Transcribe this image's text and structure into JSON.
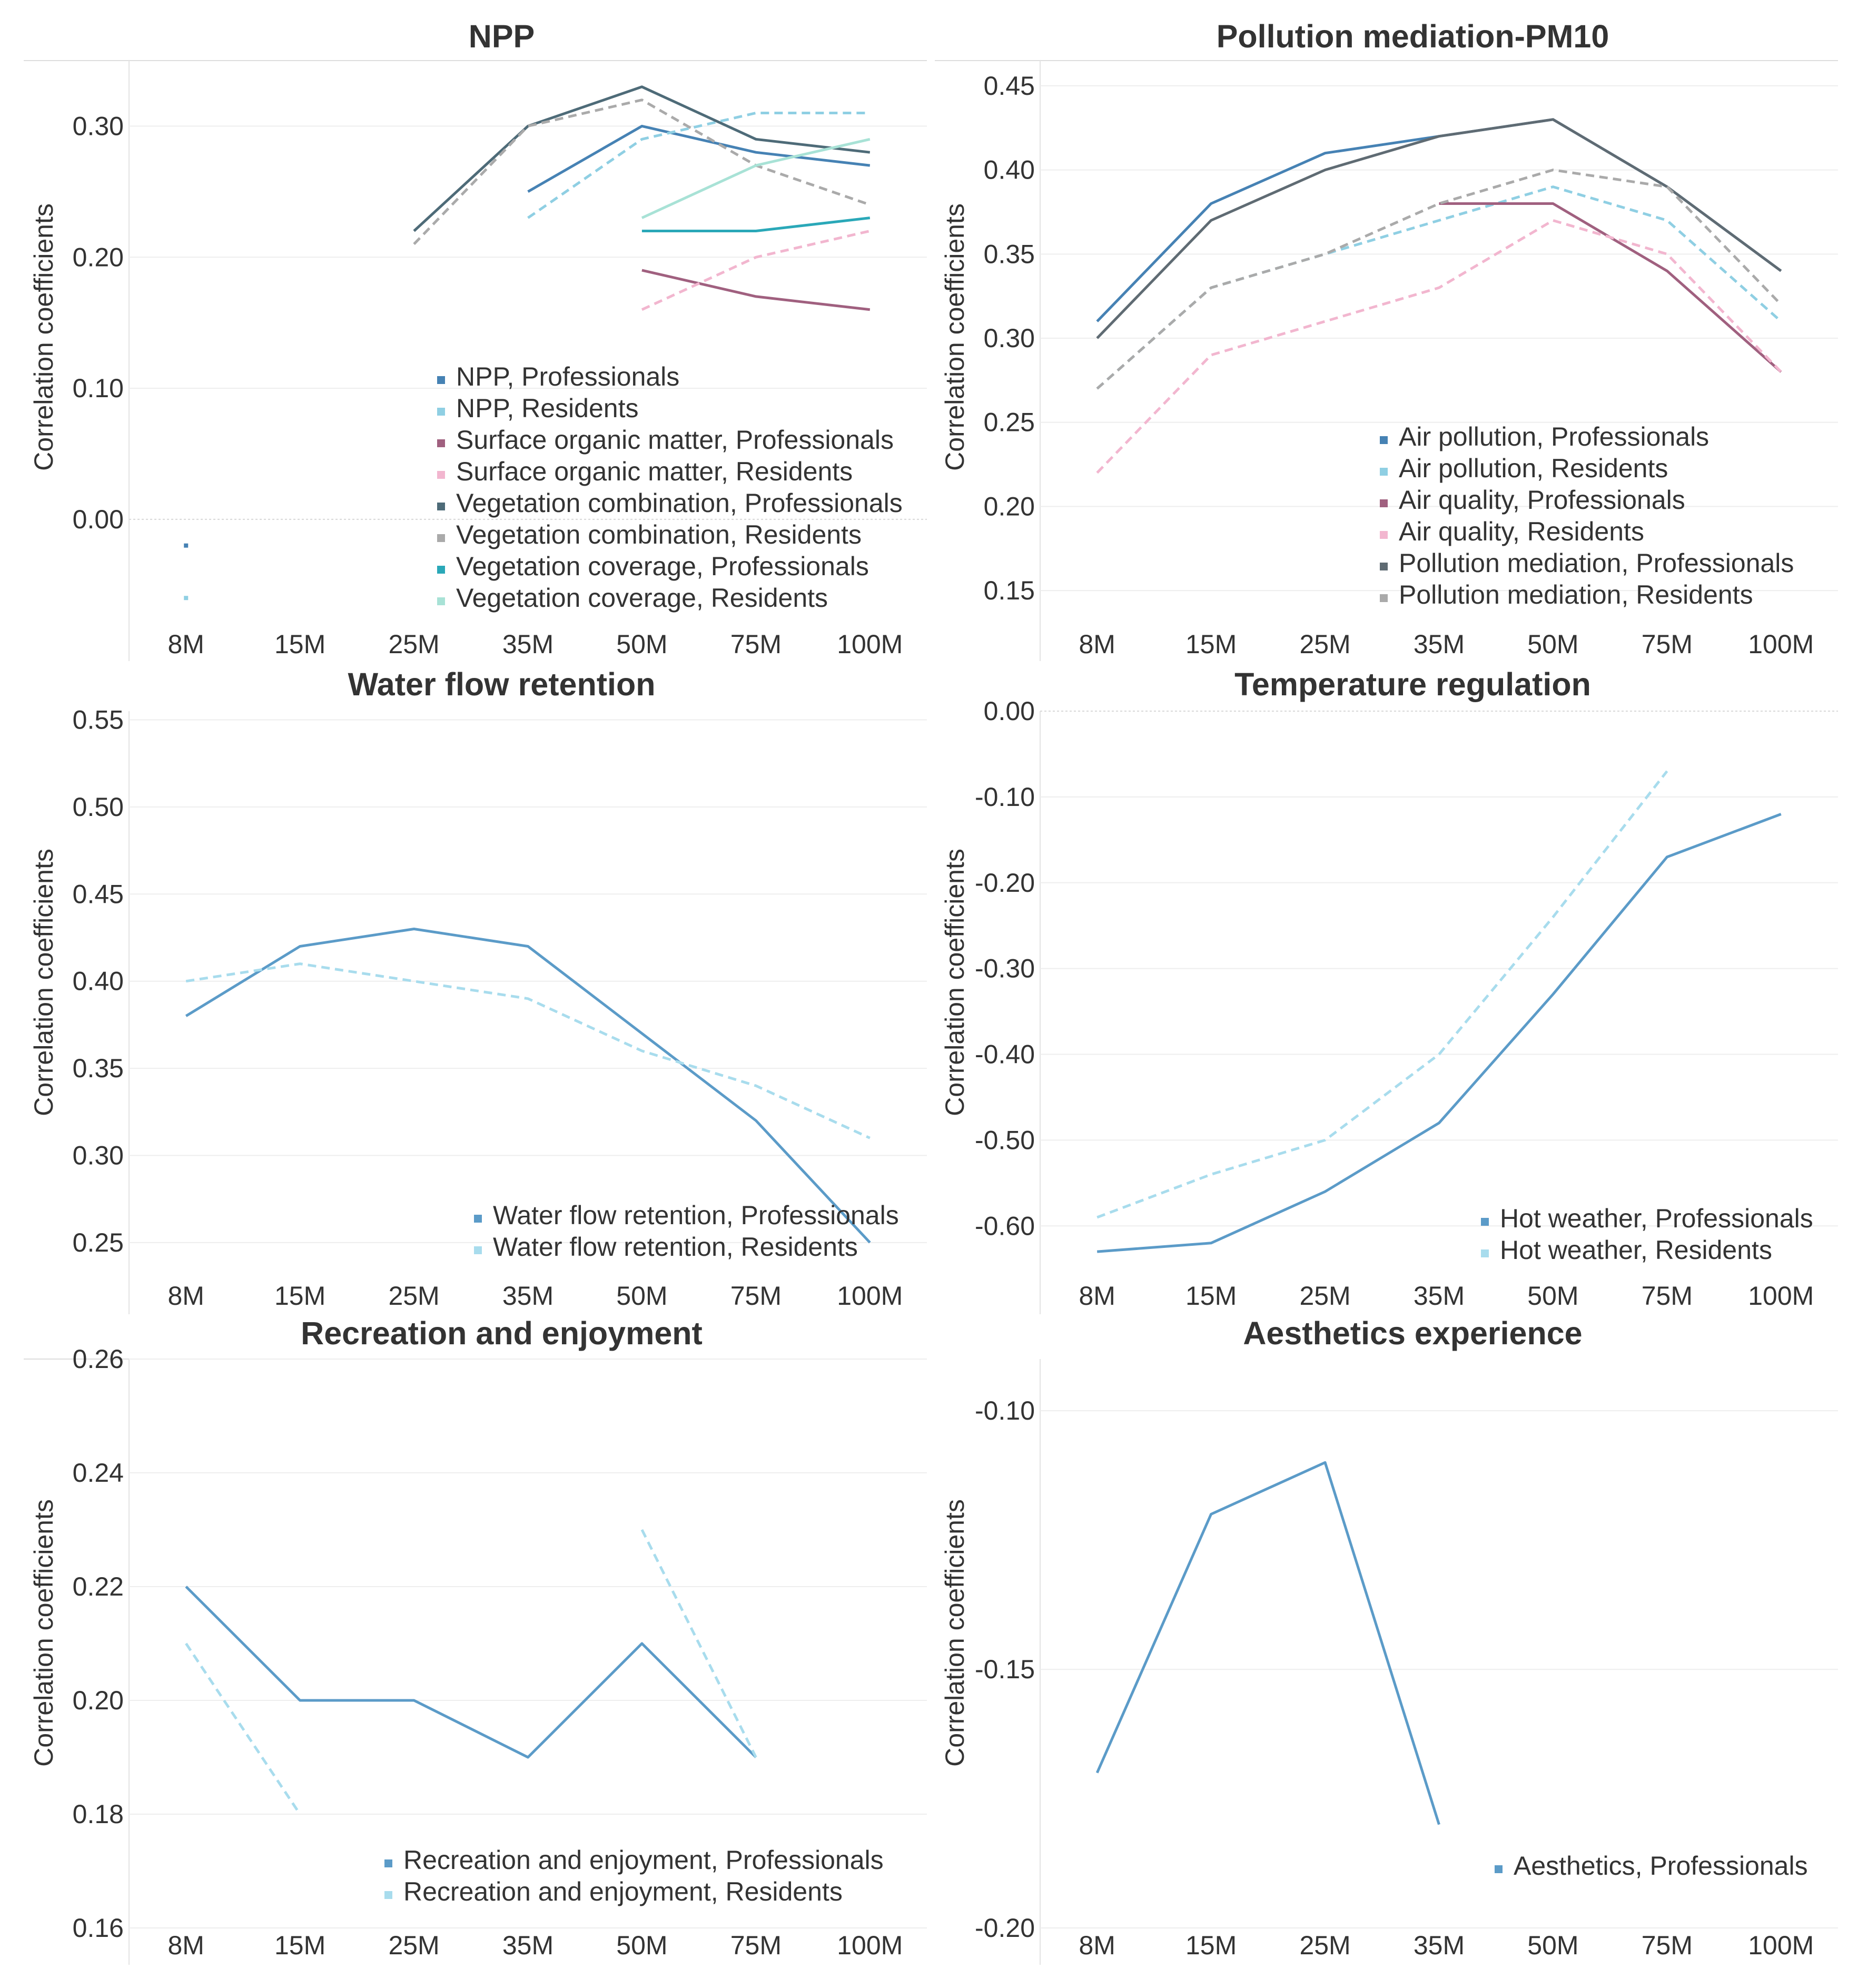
{
  "chart_data": [
    {
      "type": "line",
      "title": "NPP",
      "ylabel": "Correlation coefficients",
      "categories": [
        "8M",
        "15M",
        "25M",
        "35M",
        "50M",
        "75M",
        "100M"
      ],
      "ylim": [
        -0.08,
        0.35
      ],
      "yticks": [
        0.3,
        0.2,
        0.1,
        0.0
      ],
      "legend_position": "bottom-right",
      "series": [
        {
          "name": "NPP, Professionals",
          "color": "#4682b4",
          "dashed": false,
          "values": [
            -0.02,
            null,
            null,
            0.25,
            0.3,
            0.28,
            0.27
          ]
        },
        {
          "name": "NPP, Residents",
          "color": "#8fcfe3",
          "dashed": true,
          "values": [
            -0.06,
            null,
            null,
            0.23,
            0.29,
            0.31,
            0.31
          ]
        },
        {
          "name": "Surface organic matter, Professionals",
          "color": "#a0607f",
          "dashed": false,
          "values": [
            null,
            null,
            null,
            null,
            0.19,
            0.17,
            0.16
          ]
        },
        {
          "name": "Surface organic matter, Residents",
          "color": "#f2b6cf",
          "dashed": true,
          "values": [
            null,
            null,
            null,
            null,
            0.16,
            0.2,
            0.22
          ]
        },
        {
          "name": "Vegetation combination, Professionals",
          "color": "#4e6b78",
          "dashed": false,
          "values": [
            null,
            null,
            0.22,
            0.3,
            0.33,
            0.29,
            0.28
          ]
        },
        {
          "name": "Vegetation combination, Residents",
          "color": "#aaaaaa",
          "dashed": true,
          "values": [
            null,
            null,
            0.21,
            0.3,
            0.32,
            0.27,
            0.24
          ]
        },
        {
          "name": "Vegetation coverage, Professionals",
          "color": "#2aa8b8",
          "dashed": false,
          "values": [
            null,
            null,
            null,
            null,
            0.22,
            0.22,
            0.23
          ]
        },
        {
          "name": "Vegetation coverage, Residents",
          "color": "#a8e2d6",
          "dashed": false,
          "values": [
            null,
            null,
            null,
            null,
            0.23,
            0.27,
            0.29
          ]
        }
      ]
    },
    {
      "type": "line",
      "title": "Pollution mediation-PM10",
      "ylabel": "Correlation coefficients",
      "categories": [
        "8M",
        "15M",
        "25M",
        "35M",
        "50M",
        "75M",
        "100M"
      ],
      "ylim": [
        0.13,
        0.465
      ],
      "yticks": [
        0.45,
        0.4,
        0.35,
        0.3,
        0.25,
        0.2,
        0.15
      ],
      "legend_position": "bottom-right",
      "series": [
        {
          "name": "Air pollution, Professionals",
          "color": "#4682b4",
          "dashed": false,
          "values": [
            0.31,
            0.38,
            0.41,
            0.42,
            0.43,
            0.39,
            0.34
          ]
        },
        {
          "name": "Air pollution, Residents",
          "color": "#8fcfe3",
          "dashed": true,
          "values": [
            0.27,
            0.33,
            0.35,
            0.37,
            0.39,
            0.37,
            0.31
          ]
        },
        {
          "name": "Air quality, Professionals",
          "color": "#a0607f",
          "dashed": false,
          "values": [
            null,
            null,
            null,
            0.38,
            0.38,
            0.34,
            0.28
          ]
        },
        {
          "name": "Air quality, Residents",
          "color": "#f2b6cf",
          "dashed": true,
          "values": [
            0.22,
            0.29,
            0.31,
            0.33,
            0.37,
            0.35,
            0.28
          ]
        },
        {
          "name": "Pollution mediation, Professionals",
          "color": "#5f6b73",
          "dashed": false,
          "values": [
            0.3,
            0.37,
            0.4,
            0.42,
            0.43,
            0.39,
            0.34
          ]
        },
        {
          "name": "Pollution mediation, Residents",
          "color": "#aaaaaa",
          "dashed": true,
          "values": [
            0.27,
            0.33,
            0.35,
            0.38,
            0.4,
            0.39,
            0.32
          ]
        }
      ]
    },
    {
      "type": "line",
      "title": "Water flow retention",
      "ylabel": "Correlation coefficients",
      "categories": [
        "8M",
        "15M",
        "25M",
        "35M",
        "50M",
        "75M",
        "100M"
      ],
      "ylim": [
        0.23,
        0.555
      ],
      "yticks": [
        0.55,
        0.5,
        0.45,
        0.4,
        0.35,
        0.3,
        0.25
      ],
      "legend_position": "bottom-right",
      "series": [
        {
          "name": "Water flow retention, Professionals",
          "color": "#5b9bc8",
          "dashed": false,
          "values": [
            0.38,
            0.42,
            0.43,
            0.42,
            0.37,
            0.32,
            0.25
          ]
        },
        {
          "name": "Water flow retention, Residents",
          "color": "#a8dced",
          "dashed": true,
          "values": [
            0.4,
            0.41,
            0.4,
            0.39,
            0.36,
            0.34,
            0.31
          ]
        }
      ]
    },
    {
      "type": "line",
      "title": "Temperature regulation",
      "ylabel": "Correlation coefficients",
      "categories": [
        "8M",
        "15M",
        "25M",
        "35M",
        "50M",
        "75M",
        "100M"
      ],
      "ylim": [
        -0.66,
        0.0
      ],
      "yticks": [
        0.0,
        -0.1,
        -0.2,
        -0.3,
        -0.4,
        -0.5,
        -0.6
      ],
      "legend_position": "bottom-right",
      "series": [
        {
          "name": "Hot weather, Professionals",
          "color": "#5b9bc8",
          "dashed": false,
          "values": [
            -0.63,
            -0.62,
            -0.56,
            -0.48,
            -0.33,
            -0.17,
            -0.12
          ]
        },
        {
          "name": "Hot weather, Residents",
          "color": "#a8dced",
          "dashed": true,
          "values": [
            -0.59,
            -0.54,
            -0.5,
            -0.4,
            -0.24,
            -0.07,
            null
          ]
        }
      ]
    },
    {
      "type": "line",
      "title": "Recreation and enjoyment",
      "ylabel": "Correlation coefficients",
      "categories": [
        "8M",
        "15M",
        "25M",
        "35M",
        "50M",
        "75M",
        "100M"
      ],
      "ylim": [
        0.16,
        0.26
      ],
      "yticks": [
        0.26,
        0.24,
        0.22,
        0.2,
        0.18,
        0.16
      ],
      "legend_position": "bottom-right",
      "series": [
        {
          "name": "Recreation and enjoyment, Professionals",
          "color": "#5b9bc8",
          "dashed": false,
          "values": [
            0.22,
            0.2,
            0.2,
            0.19,
            0.21,
            0.19,
            null
          ]
        },
        {
          "name": "Recreation and enjoyment, Residents",
          "color": "#a8dced",
          "dashed": true,
          "values": [
            0.21,
            0.18,
            null,
            null,
            0.23,
            0.19,
            null
          ]
        }
      ]
    },
    {
      "type": "line",
      "title": "Aesthetics experience",
      "ylabel": "Correlation coefficients",
      "categories": [
        "8M",
        "15M",
        "25M",
        "35M",
        "50M",
        "75M",
        "100M"
      ],
      "ylim": [
        -0.2,
        -0.09
      ],
      "yticks": [
        -0.1,
        -0.15,
        -0.2
      ],
      "legend_position": "bottom-right",
      "series": [
        {
          "name": "Aesthetics, Professionals",
          "color": "#5b9bc8",
          "dashed": false,
          "values": [
            -0.17,
            -0.12,
            -0.11,
            -0.18,
            null,
            null,
            null
          ]
        }
      ]
    }
  ]
}
